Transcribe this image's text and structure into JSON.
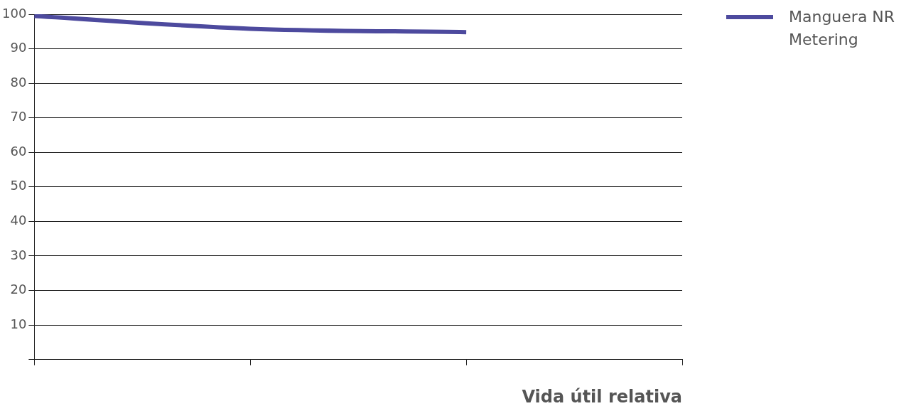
{
  "chart_data": {
    "type": "line",
    "xlabel": "Vida útil relativa",
    "categories": [
      null,
      null,
      null,
      null
    ],
    "series": [
      {
        "name": "Manguera NR Metering",
        "color": "#4d4a9e",
        "values": [
          99.5,
          95.8,
          94.8,
          null
        ]
      }
    ],
    "ylim": [
      0,
      100
    ],
    "yticks": [
      {
        "value": 0,
        "label": null
      },
      10,
      20,
      30,
      40,
      50,
      60,
      70,
      80,
      90,
      100
    ],
    "grid": "y",
    "legend": "right",
    "marker": "none",
    "line_style": "solid"
  }
}
